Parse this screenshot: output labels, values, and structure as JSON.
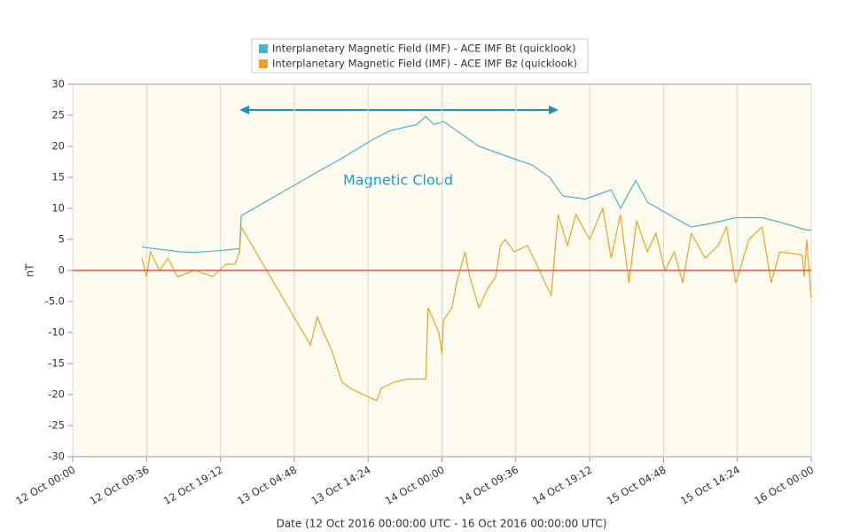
{
  "chart_data": {
    "type": "line",
    "xlabel": "Date (12 Oct 2016 00:00:00 UTC - 16 Oct 2016 00:00:00 UTC)",
    "ylabel": "nT",
    "annotation": "Magnetic Cloud",
    "xlim": [
      0,
      96
    ],
    "xticks": [
      {
        "value": 0,
        "label": "12 Oct 00:00"
      },
      {
        "value": 9.6,
        "label": "12 Oct 09:36"
      },
      {
        "value": 19.2,
        "label": "12 Oct 19:12"
      },
      {
        "value": 28.8,
        "label": "13 Oct 04:48"
      },
      {
        "value": 38.4,
        "label": "13 Oct 14:24"
      },
      {
        "value": 48,
        "label": "14 Oct 00:00"
      },
      {
        "value": 57.6,
        "label": "14 Oct 09:36"
      },
      {
        "value": 67.2,
        "label": "14 Oct 19:12"
      },
      {
        "value": 76.8,
        "label": "15 Oct 04:48"
      },
      {
        "value": 86.4,
        "label": "15 Oct 14:24"
      },
      {
        "value": 96,
        "label": "16 Oct 00:00"
      }
    ],
    "ylim": [
      -30,
      30
    ],
    "yticks": [
      30,
      25,
      20,
      15,
      10,
      5,
      0,
      {
        "value": -5,
        "label": "-5.0"
      },
      -10,
      -15,
      -20,
      -25,
      -30
    ],
    "xgrid": true,
    "reference_line": {
      "value": 0,
      "color": "#e8524f"
    },
    "series": [
      {
        "name": "Interplanetary Magnetic Field (IMF) - ACE IMF Bt (quicklook)",
        "color": "#4bb3c8",
        "x": [
          9,
          10,
          12,
          14,
          16,
          18,
          20,
          21.7,
          21.9,
          32,
          34.9,
          38.9,
          41.2,
          44.7,
          45.9,
          47,
          48.2,
          50.5,
          52.8,
          56.2,
          59.7,
          62,
          63.7,
          66.6,
          70,
          71.2,
          73.2,
          74.7,
          78.2,
          80.4,
          82.7,
          86.2,
          89.6,
          91.9,
          95.4,
          96
        ],
        "values": [
          3.8,
          3.6,
          3.3,
          3.0,
          2.9,
          3.1,
          3.3,
          3.5,
          8.8,
          16,
          18,
          21,
          22.5,
          23.5,
          24.8,
          23.5,
          24,
          22,
          20,
          18.5,
          17,
          15,
          12,
          11.5,
          13,
          10,
          14.5,
          11,
          8.5,
          7,
          7.5,
          8.5,
          8.5,
          7.8,
          6.5,
          6.5
        ]
      },
      {
        "name": "Interplanetary Magnetic Field (IMF) - ACE IMF Bz (quicklook)",
        "color": "#e9a22a",
        "x": [
          9,
          9.6,
          10.1,
          11.3,
          12.4,
          13.6,
          15.9,
          18.2,
          19.9,
          21.1,
          21.7,
          21.9,
          30.9,
          31.8,
          32.6,
          33.7,
          35,
          36.1,
          37.8,
          39.5,
          40.1,
          41.8,
          43.5,
          45.9,
          46.2,
          47.6,
          48,
          48.2,
          49.3,
          49.9,
          51,
          51.6,
          52.8,
          53.9,
          55,
          55.6,
          56.2,
          57.4,
          59.1,
          60.3,
          61.4,
          62.2,
          63.1,
          64.3,
          65.4,
          67.2,
          68.9,
          70,
          71.2,
          72.3,
          73.3,
          74.7,
          75.8,
          77,
          78.2,
          79.3,
          80.4,
          82.2,
          83.9,
          85,
          86.2,
          87.9,
          89.6,
          90.8,
          91.9,
          94.8,
          95.1,
          95.4,
          96
        ],
        "values": [
          2,
          -1,
          3,
          0,
          2,
          -1,
          0,
          -1,
          1,
          1,
          3,
          7,
          -12,
          -7.5,
          -10,
          -13,
          -18,
          -19,
          -20,
          -21,
          -19,
          -18,
          -17.5,
          -17.5,
          -6,
          -10,
          -13.5,
          -8,
          -6,
          -2,
          3,
          -1,
          -6,
          -3,
          -1,
          4,
          5,
          3,
          4,
          1,
          -2,
          -4,
          9,
          4,
          9,
          5,
          10,
          2,
          9,
          -2,
          8,
          3,
          6,
          0,
          3,
          -2,
          6,
          2,
          4,
          7,
          -2,
          5,
          7,
          -2,
          3,
          2.5,
          -1,
          5,
          -4.5
        ]
      }
    ]
  }
}
